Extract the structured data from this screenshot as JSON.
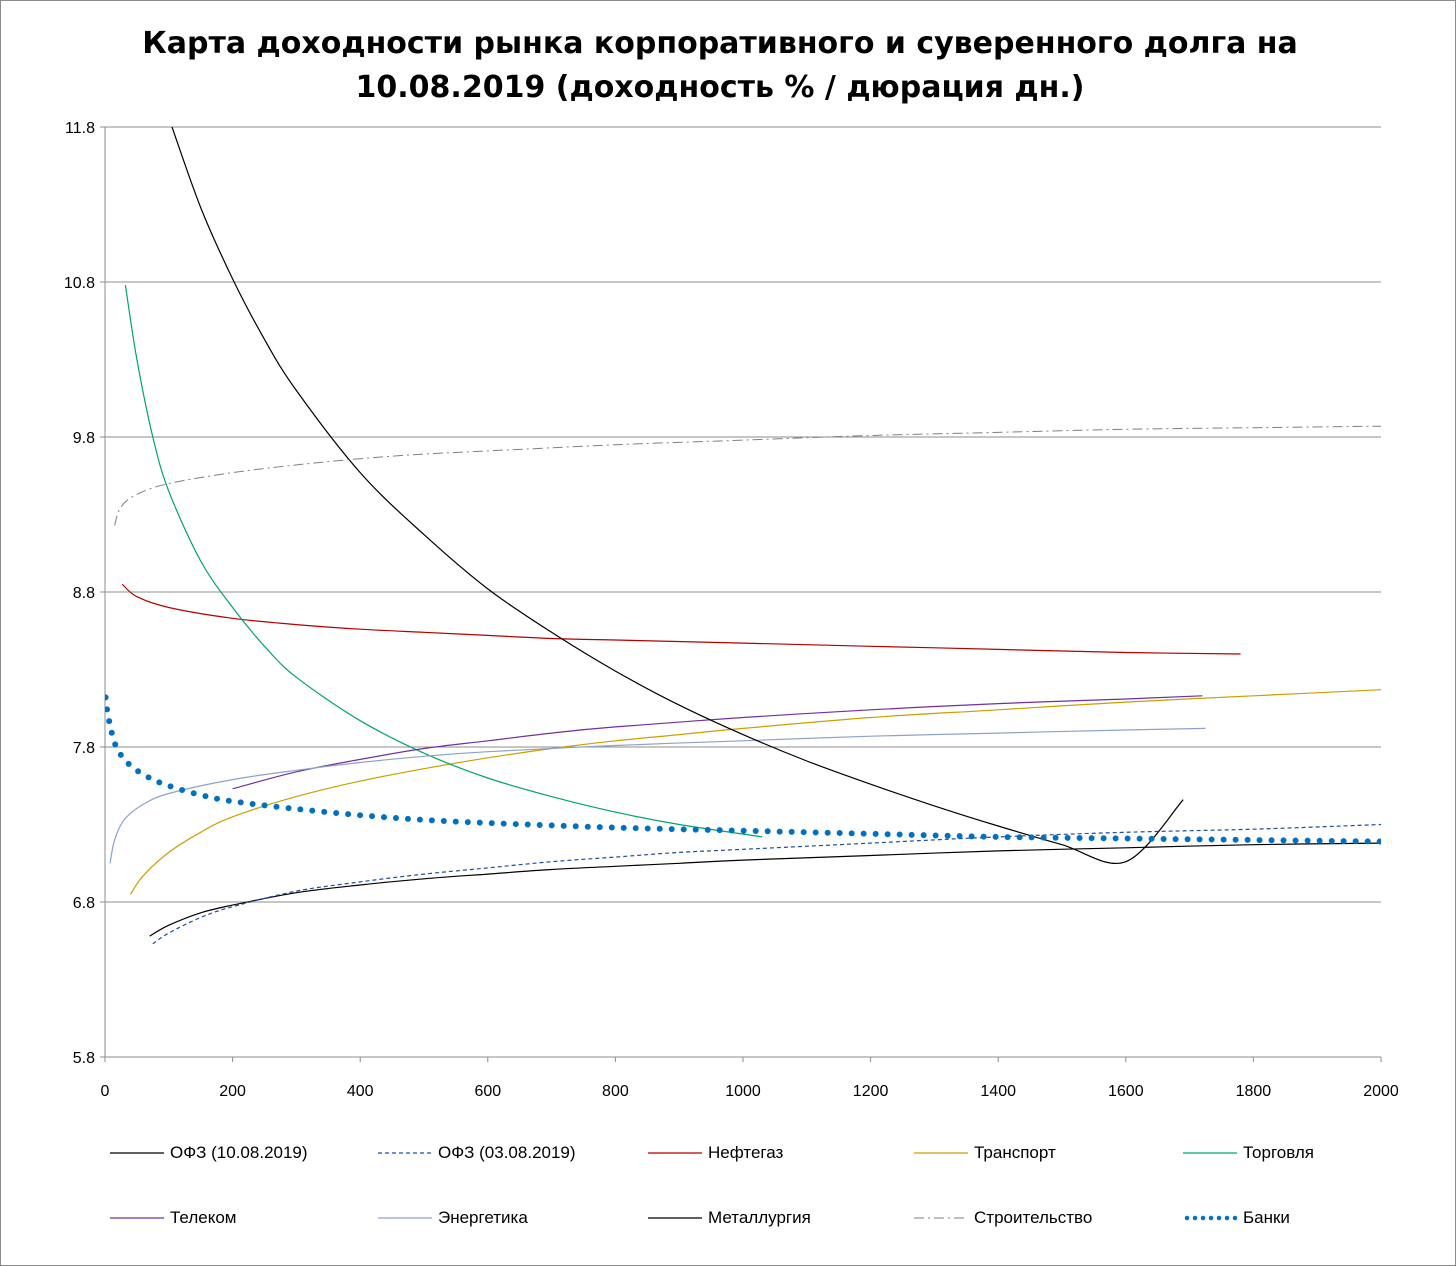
{
  "chart_data": {
    "type": "line",
    "title_lines": [
      "Карта доходности рынка корпоративного и суверенного долга на",
      "10.08.2019 (доходность % / дюрация дн.)"
    ],
    "xlabel": "",
    "ylabel": "",
    "xlim": [
      0,
      2000
    ],
    "ylim": [
      5.8,
      11.8
    ],
    "x_ticks": [
      0,
      200,
      400,
      600,
      800,
      1000,
      1200,
      1400,
      1600,
      1800,
      2000
    ],
    "y_ticks": [
      5.8,
      6.8,
      7.8,
      8.8,
      9.8,
      10.8,
      11.8
    ],
    "y_tick_labels": [
      "5.8",
      "6.8",
      "7.8",
      "8.8",
      "9.8",
      "10.8",
      "11.8"
    ],
    "grid": "horizontal",
    "legend_position": "bottom",
    "series": [
      {
        "name": "ОФЗ (10.08.2019)",
        "color": "#000000",
        "style": "solid",
        "points": [
          [
            70,
            6.58
          ],
          [
            100,
            6.65
          ],
          [
            150,
            6.73
          ],
          [
            200,
            6.78
          ],
          [
            300,
            6.86
          ],
          [
            400,
            6.91
          ],
          [
            500,
            6.95
          ],
          [
            600,
            6.98
          ],
          [
            700,
            7.01
          ],
          [
            800,
            7.03
          ],
          [
            900,
            7.05
          ],
          [
            1000,
            7.07
          ],
          [
            1200,
            7.1
          ],
          [
            1400,
            7.13
          ],
          [
            1600,
            7.15
          ],
          [
            1800,
            7.17
          ],
          [
            2000,
            7.18
          ]
        ]
      },
      {
        "name": "ОФЗ (03.08.2019)",
        "color": "#1f4e9c",
        "style": "dashed",
        "points": [
          [
            75,
            6.53
          ],
          [
            100,
            6.6
          ],
          [
            150,
            6.7
          ],
          [
            200,
            6.77
          ],
          [
            300,
            6.87
          ],
          [
            400,
            6.93
          ],
          [
            500,
            6.98
          ],
          [
            600,
            7.02
          ],
          [
            700,
            7.06
          ],
          [
            800,
            7.09
          ],
          [
            900,
            7.12
          ],
          [
            1000,
            7.14
          ],
          [
            1200,
            7.18
          ],
          [
            1400,
            7.22
          ],
          [
            1600,
            7.25
          ],
          [
            1800,
            7.27
          ],
          [
            2000,
            7.3
          ]
        ]
      },
      {
        "name": "Нефтегаз",
        "color": "#b30000",
        "style": "solid",
        "points": [
          [
            27,
            8.85
          ],
          [
            50,
            8.77
          ],
          [
            100,
            8.7
          ],
          [
            200,
            8.63
          ],
          [
            300,
            8.59
          ],
          [
            400,
            8.56
          ],
          [
            500,
            8.54
          ],
          [
            600,
            8.52
          ],
          [
            700,
            8.5
          ],
          [
            800,
            8.49
          ],
          [
            1000,
            8.47
          ],
          [
            1200,
            8.45
          ],
          [
            1400,
            8.43
          ],
          [
            1600,
            8.41
          ],
          [
            1780,
            8.4
          ]
        ]
      },
      {
        "name": "Транспорт",
        "color": "#c9a000",
        "style": "solid",
        "points": [
          [
            40,
            6.85
          ],
          [
            60,
            6.97
          ],
          [
            100,
            7.12
          ],
          [
            150,
            7.25
          ],
          [
            200,
            7.35
          ],
          [
            300,
            7.48
          ],
          [
            400,
            7.58
          ],
          [
            500,
            7.66
          ],
          [
            600,
            7.73
          ],
          [
            700,
            7.79
          ],
          [
            800,
            7.84
          ],
          [
            900,
            7.88
          ],
          [
            1000,
            7.92
          ],
          [
            1200,
            7.99
          ],
          [
            1400,
            8.04
          ],
          [
            1600,
            8.09
          ],
          [
            1800,
            8.13
          ],
          [
            2000,
            8.17
          ]
        ]
      },
      {
        "name": "Торговля",
        "color": "#00a36c",
        "style": "solid",
        "points": [
          [
            32,
            10.78
          ],
          [
            50,
            10.3
          ],
          [
            75,
            9.8
          ],
          [
            100,
            9.45
          ],
          [
            150,
            9.0
          ],
          [
            200,
            8.7
          ],
          [
            250,
            8.45
          ],
          [
            300,
            8.25
          ],
          [
            400,
            7.97
          ],
          [
            500,
            7.76
          ],
          [
            600,
            7.6
          ],
          [
            700,
            7.48
          ],
          [
            800,
            7.38
          ],
          [
            900,
            7.3
          ],
          [
            1030,
            7.22
          ]
        ]
      },
      {
        "name": "Телеком",
        "color": "#7030a0",
        "style": "solid",
        "points": [
          [
            200,
            7.53
          ],
          [
            300,
            7.64
          ],
          [
            400,
            7.72
          ],
          [
            500,
            7.79
          ],
          [
            600,
            7.84
          ],
          [
            700,
            7.89
          ],
          [
            800,
            7.93
          ],
          [
            1000,
            7.99
          ],
          [
            1200,
            8.04
          ],
          [
            1400,
            8.08
          ],
          [
            1600,
            8.11
          ],
          [
            1720,
            8.13
          ]
        ]
      },
      {
        "name": "Энергетика",
        "color": "#8ea2c6",
        "style": "solid",
        "points": [
          [
            8,
            7.05
          ],
          [
            15,
            7.2
          ],
          [
            30,
            7.33
          ],
          [
            60,
            7.43
          ],
          [
            100,
            7.5
          ],
          [
            200,
            7.59
          ],
          [
            300,
            7.65
          ],
          [
            400,
            7.7
          ],
          [
            500,
            7.74
          ],
          [
            600,
            7.77
          ],
          [
            800,
            7.81
          ],
          [
            1000,
            7.84
          ],
          [
            1200,
            7.87
          ],
          [
            1400,
            7.89
          ],
          [
            1600,
            7.91
          ],
          [
            1725,
            7.92
          ]
        ]
      },
      {
        "name": "Металлургия",
        "color": "#000000",
        "style": "solid",
        "points": [
          [
            105,
            11.8
          ],
          [
            150,
            11.28
          ],
          [
            200,
            10.82
          ],
          [
            250,
            10.43
          ],
          [
            300,
            10.1
          ],
          [
            400,
            9.57
          ],
          [
            500,
            9.17
          ],
          [
            600,
            8.82
          ],
          [
            700,
            8.54
          ],
          [
            800,
            8.29
          ],
          [
            900,
            8.07
          ],
          [
            1000,
            7.88
          ],
          [
            1100,
            7.71
          ],
          [
            1200,
            7.56
          ],
          [
            1300,
            7.42
          ],
          [
            1400,
            7.29
          ],
          [
            1500,
            7.17
          ],
          [
            1600,
            7.06
          ],
          [
            1690,
            7.46
          ]
        ]
      },
      {
        "name": "Строительство",
        "color": "#7f7f7f",
        "style": "dashdot",
        "points": [
          [
            15,
            9.23
          ],
          [
            25,
            9.35
          ],
          [
            50,
            9.43
          ],
          [
            100,
            9.5
          ],
          [
            200,
            9.57
          ],
          [
            300,
            9.62
          ],
          [
            400,
            9.66
          ],
          [
            500,
            9.69
          ],
          [
            600,
            9.71
          ],
          [
            800,
            9.75
          ],
          [
            1000,
            9.78
          ],
          [
            1200,
            9.81
          ],
          [
            1400,
            9.83
          ],
          [
            1600,
            9.85
          ],
          [
            1800,
            9.86
          ],
          [
            2000,
            9.87
          ]
        ]
      },
      {
        "name": "Банки",
        "color": "#0070c0",
        "style": "dotted",
        "points": [
          [
            1,
            8.12
          ],
          [
            3,
            8.05
          ],
          [
            6,
            7.98
          ],
          [
            10,
            7.9
          ],
          [
            20,
            7.78
          ],
          [
            40,
            7.68
          ],
          [
            70,
            7.6
          ],
          [
            100,
            7.55
          ],
          [
            150,
            7.49
          ],
          [
            200,
            7.45
          ],
          [
            300,
            7.4
          ],
          [
            400,
            7.36
          ],
          [
            500,
            7.33
          ],
          [
            600,
            7.31
          ],
          [
            800,
            7.28
          ],
          [
            1000,
            7.26
          ],
          [
            1200,
            7.24
          ],
          [
            1400,
            7.22
          ],
          [
            1600,
            7.21
          ],
          [
            1800,
            7.2
          ],
          [
            2000,
            7.19
          ]
        ]
      }
    ]
  }
}
